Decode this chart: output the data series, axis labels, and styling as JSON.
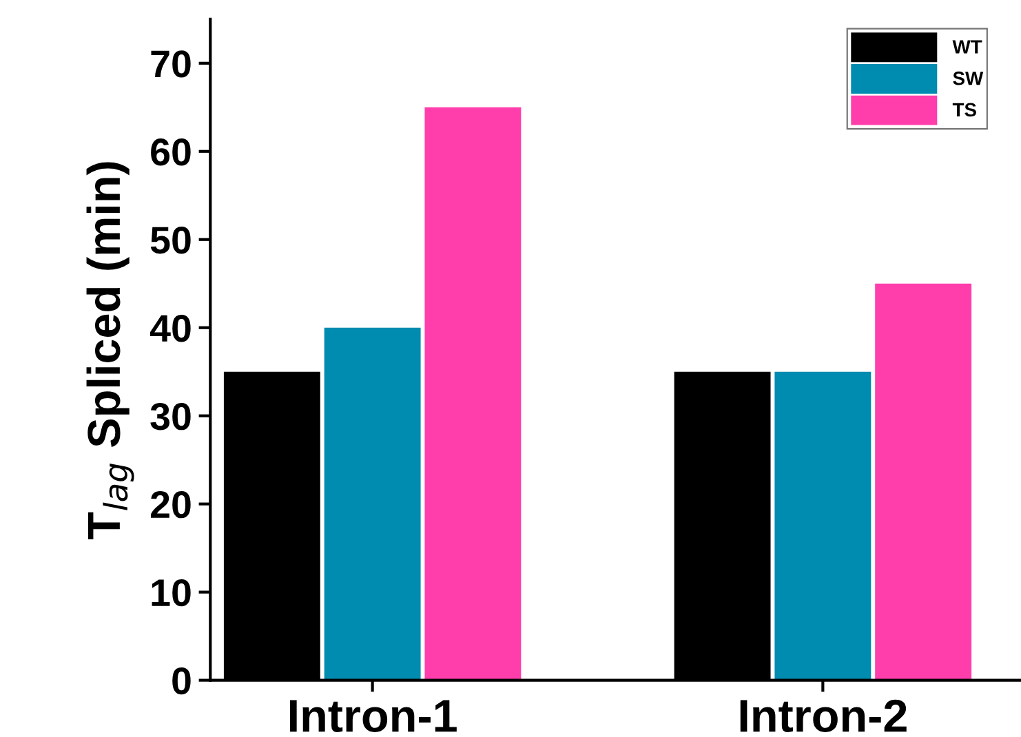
{
  "chart_data": {
    "type": "bar",
    "ylabel": "T$_{lag}$ Spliced (min)",
    "categories": [
      "Intron-1",
      "Intron-2"
    ],
    "series": [
      {
        "name": "WT",
        "color": "#000000",
        "values": [
          35,
          35
        ]
      },
      {
        "name": "SW",
        "color": "#008bb0",
        "values": [
          40,
          35
        ]
      },
      {
        "name": "TS",
        "color": "#ff3eac",
        "values": [
          65,
          45
        ]
      }
    ],
    "ylim": [
      0,
      75
    ],
    "yticks": [
      0,
      10,
      20,
      30,
      40,
      50,
      60,
      70
    ],
    "grid": false,
    "legend": "top right"
  }
}
